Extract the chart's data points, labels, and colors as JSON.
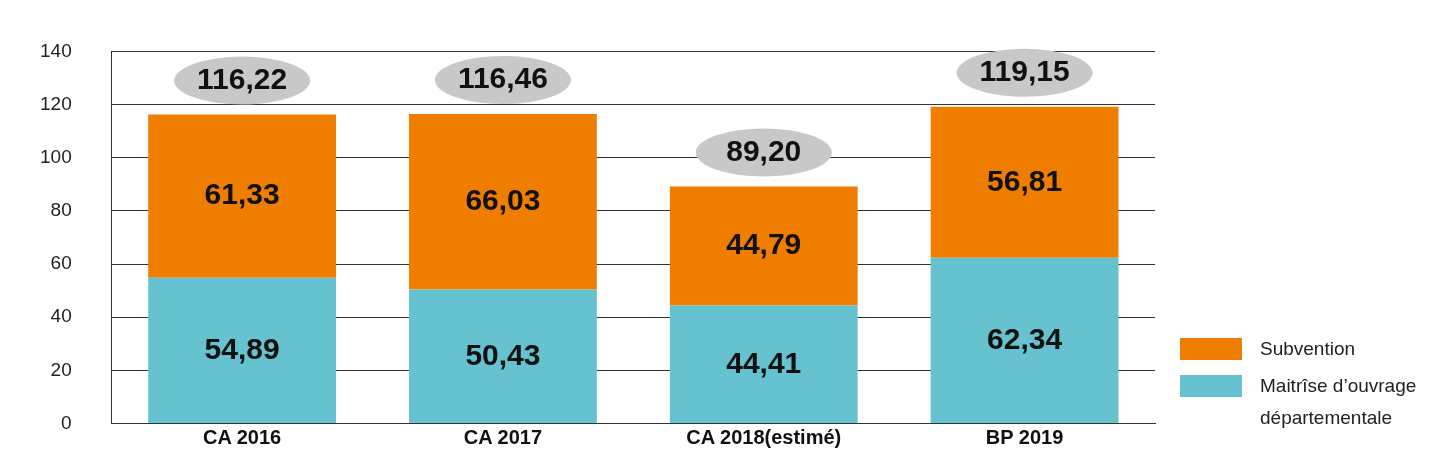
{
  "chart_data": {
    "type": "bar",
    "stacked": true,
    "categories": [
      "CA 2016",
      "CA 2017",
      "CA 2018(estimé)",
      "BP 2019"
    ],
    "series": [
      {
        "name": "Maitrîse d’ouvrage départementale",
        "color": "#65c2ce",
        "values": [
          54.89,
          50.43,
          44.41,
          62.34
        ],
        "value_labels": [
          "54,89",
          "50,43",
          "44,41",
          "62,34"
        ]
      },
      {
        "name": "Subvention",
        "color": "#ef7d00",
        "values": [
          61.33,
          66.03,
          44.79,
          56.81
        ],
        "value_labels": [
          "61,33",
          "66,03",
          "44,79",
          "56,81"
        ]
      }
    ],
    "totals": [
      "116,22",
      "116,46",
      "89,20",
      "119,15"
    ],
    "ylim": [
      0,
      140
    ],
    "yticks": [
      0,
      20,
      40,
      60,
      80,
      100,
      120,
      140
    ],
    "grid": "y",
    "legend": "bottom right"
  }
}
